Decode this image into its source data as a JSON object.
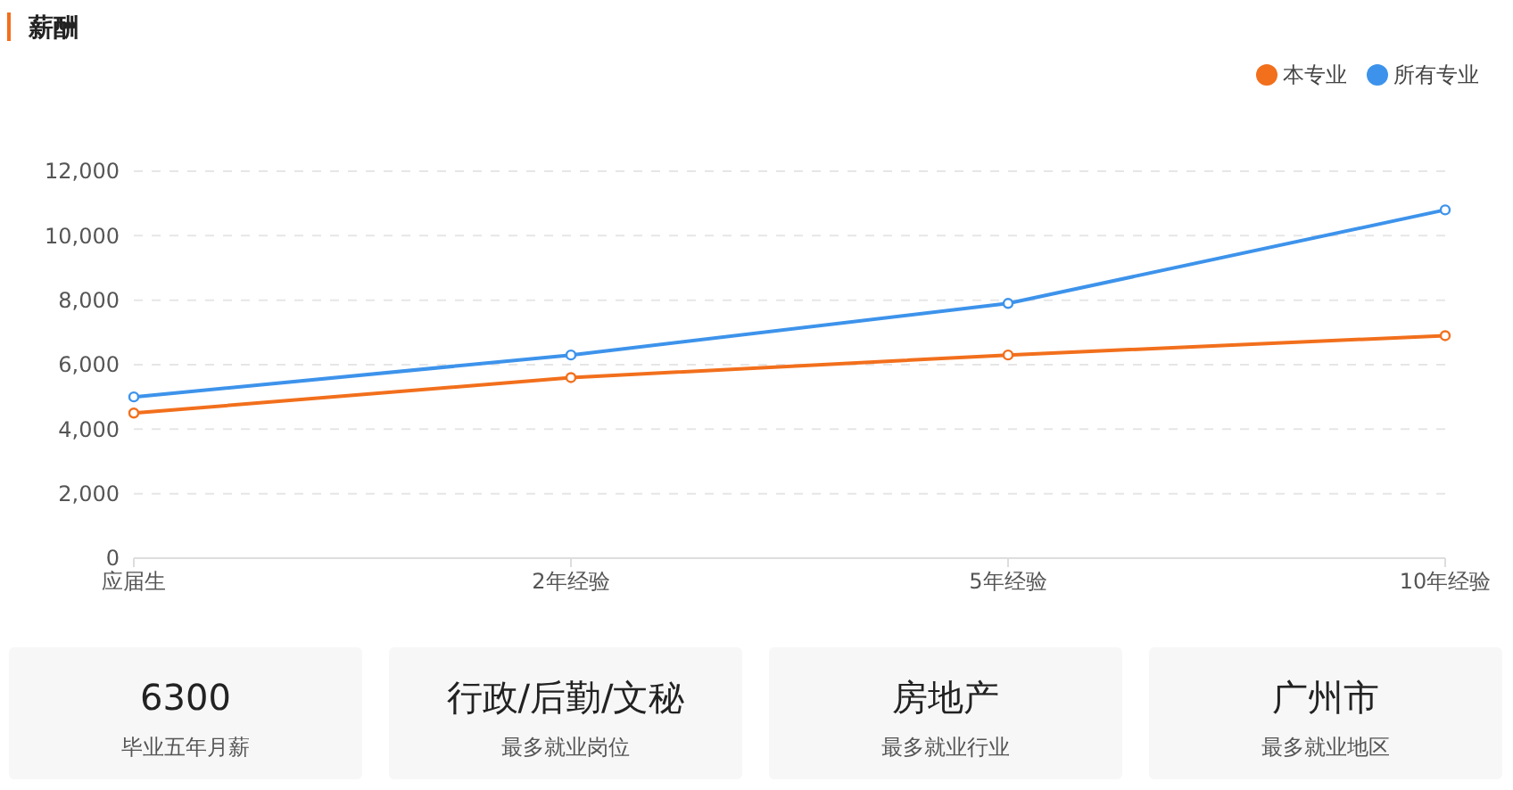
{
  "chart_data": {
    "type": "line",
    "title": "薪酬",
    "categories": [
      "应届生",
      "2年经验",
      "5年经验",
      "10年经验"
    ],
    "series": [
      {
        "name": "本专业",
        "color": "#f26f1c",
        "values": [
          4500,
          5600,
          6300,
          6900
        ]
      },
      {
        "name": "所有专业",
        "color": "#3d93eb",
        "values": [
          5000,
          6300,
          7900,
          10800
        ]
      }
    ],
    "ylim": [
      0,
      12000
    ],
    "yticks": [
      {
        "value": 0,
        "label": "0"
      },
      {
        "value": 2000,
        "label": "2,000"
      },
      {
        "value": 4000,
        "label": "4,000"
      },
      {
        "value": 6000,
        "label": "6,000"
      },
      {
        "value": 8000,
        "label": "8,000"
      },
      {
        "value": 10000,
        "label": "10,000"
      },
      {
        "value": 12000,
        "label": "12,000"
      }
    ],
    "grid": "y",
    "legend": "top right",
    "marker": "circle",
    "line_style": "solid",
    "annotations": [
      "6300",
      "毕业五年月薪",
      "行政/后勤/文秘",
      "最多就业岗位",
      "房地产",
      "最多就业行业",
      "广州市",
      "最多就业地区"
    ]
  }
}
